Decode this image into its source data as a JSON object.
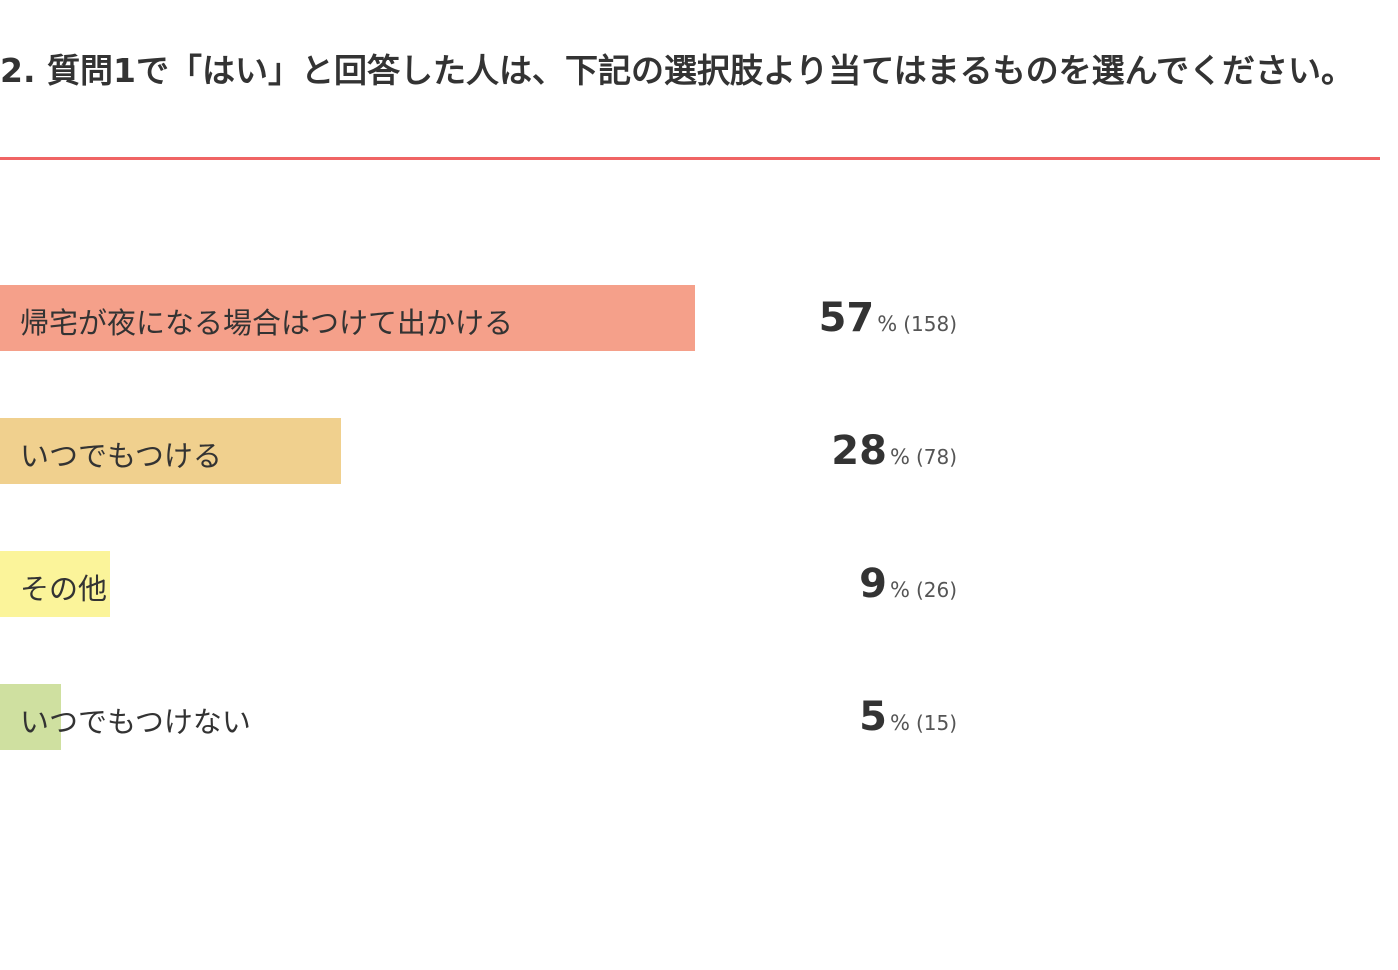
{
  "chart_data": {
    "type": "bar",
    "orientation": "horizontal",
    "title": "2. 質問1で「はい」と回答した人は、下記の選択肢より当てはまるものを選んでください。",
    "categories": [
      "帰宅が夜になる場合はつけて出かける",
      "いつでもつける",
      "その他",
      "いつでもつけない"
    ],
    "values": [
      57,
      28,
      9,
      5
    ],
    "value_unit": "%",
    "count_labels": [
      "(158)",
      "(78)",
      "(26)",
      "(15)"
    ],
    "colors": [
      "#f5a08a",
      "#f0d08e",
      "#fbf49a",
      "#cfe0a0"
    ],
    "xlim": [
      0,
      100
    ]
  }
}
